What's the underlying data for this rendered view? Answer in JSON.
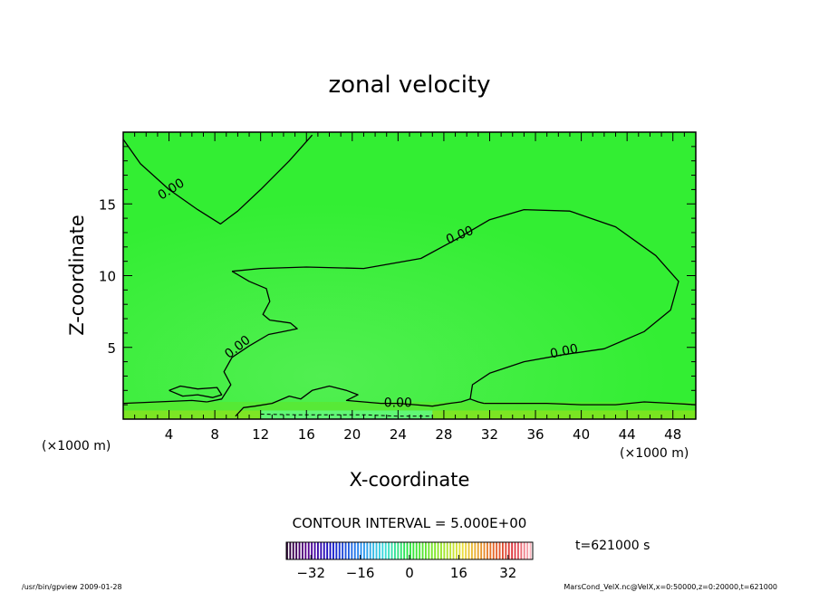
{
  "chart_data": {
    "type": "heatmap",
    "title": "zonal velocity",
    "xlabel": "X-coordinate",
    "ylabel": "Z-coordinate",
    "x_unit_left": "(×1000 m)",
    "x_unit_right": "(×1000 m)",
    "xlim": [
      0,
      50
    ],
    "ylim": [
      0,
      20
    ],
    "x_ticks": [
      4,
      8,
      12,
      16,
      20,
      24,
      28,
      32,
      36,
      40,
      44,
      48
    ],
    "y_ticks": [
      5,
      10,
      15
    ],
    "contour_interval_text": "CONTOUR INTERVAL = 5.000E+00",
    "contour_labels": [
      {
        "text": "0.00",
        "x": 4.2,
        "z": 16.0
      },
      {
        "text": "0.00",
        "x": 29.4,
        "z": 12.8
      },
      {
        "text": "0.00",
        "x": 10.0,
        "z": 5.0
      },
      {
        "text": "0.00",
        "x": 38.5,
        "z": 4.7
      },
      {
        "text": "0.00",
        "x": 24.0,
        "z": 1.1
      }
    ],
    "contours": [
      {
        "level": 0,
        "points": [
          [
            0,
            19.5
          ],
          [
            1.5,
            17.8
          ],
          [
            4,
            16
          ],
          [
            6.5,
            14.6
          ],
          [
            8.5,
            13.6
          ],
          [
            10,
            14.5
          ],
          [
            12,
            16
          ],
          [
            14.5,
            18
          ],
          [
            16.5,
            19.8
          ]
        ]
      },
      {
        "level": 0,
        "points": [
          [
            9.5,
            10.3
          ],
          [
            12,
            10.5
          ],
          [
            16,
            10.6
          ],
          [
            21,
            10.5
          ],
          [
            26,
            11.2
          ],
          [
            29,
            12.5
          ],
          [
            32,
            13.9
          ],
          [
            35,
            14.6
          ],
          [
            39,
            14.5
          ],
          [
            43,
            13.4
          ],
          [
            46.5,
            11.4
          ],
          [
            48.5,
            9.6
          ],
          [
            47.8,
            7.6
          ],
          [
            45.5,
            6.1
          ],
          [
            42,
            4.9
          ],
          [
            38.5,
            4.5
          ],
          [
            35,
            4.0
          ],
          [
            32,
            3.2
          ],
          [
            30.5,
            2.4
          ],
          [
            30.3,
            1.4
          ]
        ]
      },
      {
        "level": 0,
        "points": [
          [
            9.5,
            10.3
          ],
          [
            11,
            9.6
          ],
          [
            12.5,
            9.1
          ],
          [
            12.8,
            8.2
          ],
          [
            12.2,
            7.3
          ],
          [
            12.8,
            6.9
          ],
          [
            14.6,
            6.7
          ],
          [
            15.2,
            6.3
          ],
          [
            14,
            6.1
          ],
          [
            12.7,
            5.9
          ],
          [
            11,
            5.1
          ],
          [
            9.5,
            4.3
          ],
          [
            8.8,
            3.3
          ],
          [
            9.4,
            2.4
          ],
          [
            8.6,
            1.4
          ],
          [
            7.3,
            1.2
          ]
        ]
      },
      {
        "level": 0,
        "points": [
          [
            0,
            1.1
          ],
          [
            3,
            1.2
          ],
          [
            6,
            1.3
          ],
          [
            7.3,
            1.2
          ]
        ]
      },
      {
        "level": 0,
        "points": [
          [
            4,
            2.0
          ],
          [
            5,
            2.3
          ],
          [
            6.5,
            2.1
          ],
          [
            8.2,
            2.2
          ],
          [
            8.6,
            1.7
          ],
          [
            7.8,
            1.5
          ],
          [
            6.5,
            1.7
          ],
          [
            5.2,
            1.6
          ],
          [
            4,
            2.0
          ]
        ]
      },
      {
        "level": 0,
        "points": [
          [
            9.8,
            0.2
          ],
          [
            10.5,
            0.8
          ],
          [
            11.5,
            0.9
          ],
          [
            13,
            1.1
          ],
          [
            14.5,
            1.6
          ],
          [
            15.5,
            1.4
          ],
          [
            16.5,
            2.0
          ],
          [
            18,
            2.3
          ],
          [
            19.5,
            2.0
          ],
          [
            20.5,
            1.7
          ],
          [
            19.5,
            1.3
          ],
          [
            21,
            1.2
          ],
          [
            22.5,
            1.1
          ],
          [
            24,
            1.1
          ],
          [
            25.5,
            1.0
          ],
          [
            27,
            0.9
          ],
          [
            28.5,
            1.1
          ],
          [
            29.5,
            1.2
          ],
          [
            30.3,
            1.4
          ],
          [
            31,
            1.2
          ],
          [
            31.5,
            1.1
          ]
        ]
      },
      {
        "level": 0,
        "points": [
          [
            31.5,
            1.1
          ],
          [
            34,
            1.1
          ],
          [
            37,
            1.1
          ],
          [
            40,
            1.0
          ],
          [
            43,
            1.0
          ],
          [
            45.5,
            1.2
          ],
          [
            48,
            1.1
          ],
          [
            50,
            1.0
          ]
        ]
      }
    ],
    "negative_contours": [
      {
        "level": -5,
        "points": [
          [
            12,
            0.35
          ],
          [
            15,
            0.3
          ],
          [
            18,
            0.3
          ],
          [
            21,
            0.3
          ],
          [
            24,
            0.2
          ],
          [
            27,
            0.2
          ]
        ]
      }
    ],
    "colorbar": {
      "range": [
        -40,
        40
      ],
      "ticks": [
        -32,
        -16,
        0,
        16,
        32
      ]
    },
    "colors": {
      "field": "#33ee33",
      "field_light": "#5df05d",
      "band_low": "#66e21f",
      "band_low2": "#9ae21a",
      "band_low3": "#55ff99"
    }
  },
  "time_label": "t=621000 s",
  "footer": {
    "left": "/usr/bin/gpview  2009-01-28",
    "right": "MarsCond_VelX.nc@VelX,x=0:50000,z=0:20000,t=621000"
  }
}
